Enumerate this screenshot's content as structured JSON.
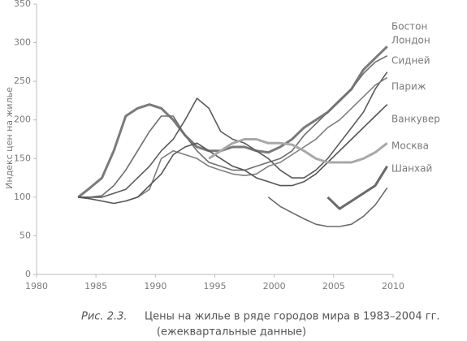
{
  "chart_data": {
    "type": "line",
    "y_label": "Индекс цен на жилье",
    "caption_label": "Рис. 2.3.",
    "caption": "Цены на жилье в ряде городов мира в 1983–2004 гг.",
    "caption_note": "(ежеквартальные данные)",
    "xlim": [
      1980,
      2010
    ],
    "xticks": [
      1980,
      1985,
      1990,
      1995,
      2000,
      2005,
      2010
    ],
    "ylim": [
      0,
      350
    ],
    "yticks": [
      0,
      50,
      100,
      150,
      200,
      250,
      300,
      350
    ],
    "x": [
      1983.5,
      1984.5,
      1985.5,
      1986.5,
      1987.5,
      1988.5,
      1989.5,
      1990.5,
      1991.5,
      1992.5,
      1993.5,
      1994.5,
      1995.5,
      1996.5,
      1997.5,
      1998.5,
      1999.5,
      2000.5,
      2001.5,
      2002.5,
      2003.5,
      2004.5,
      2005.5,
      2006.5,
      2007.5,
      2008.5,
      2009.5
    ],
    "series": [
      {
        "name": "Бостон",
        "color": "#7a7a7a",
        "values": [
          100,
          112,
          125,
          160,
          205,
          215,
          220,
          215,
          200,
          180,
          165,
          160,
          160,
          165,
          165,
          160,
          158,
          165,
          175,
          190,
          200,
          210,
          225,
          240,
          265,
          280,
          295
        ]
      },
      {
        "name": "Лондон",
        "color": "#6e6e6e",
        "values": [
          100,
          100,
          102,
          115,
          135,
          160,
          185,
          205,
          205,
          180,
          160,
          145,
          140,
          135,
          135,
          140,
          145,
          150,
          160,
          180,
          195,
          210,
          225,
          240,
          260,
          275,
          283
        ]
      },
      {
        "name": "Сидней",
        "color": "#5a5a5a",
        "values": [
          100,
          100,
          100,
          105,
          110,
          125,
          140,
          160,
          175,
          200,
          228,
          215,
          185,
          175,
          170,
          160,
          150,
          135,
          125,
          125,
          135,
          150,
          170,
          190,
          210,
          240,
          262
        ]
      },
      {
        "name": "Париж",
        "color": "#7f7f7f",
        "values": [
          null,
          null,
          null,
          null,
          95,
          100,
          110,
          150,
          160,
          155,
          150,
          140,
          135,
          130,
          128,
          130,
          140,
          145,
          155,
          165,
          175,
          190,
          200,
          215,
          230,
          245,
          255
        ]
      },
      {
        "name": "Ванкувер",
        "color": "#555555",
        "values": [
          100,
          98,
          95,
          92,
          95,
          100,
          115,
          130,
          155,
          165,
          170,
          160,
          150,
          140,
          135,
          125,
          120,
          115,
          115,
          120,
          130,
          145,
          160,
          175,
          190,
          205,
          220
        ]
      },
      {
        "name": "Москва",
        "color": "#a8a8a8",
        "values": [
          null,
          null,
          null,
          null,
          null,
          null,
          null,
          null,
          null,
          null,
          null,
          150,
          160,
          170,
          175,
          175,
          170,
          170,
          168,
          160,
          150,
          145,
          145,
          145,
          150,
          158,
          170
        ]
      },
      {
        "name": "Шанхай",
        "color": "#6a6a6a",
        "values": [
          null,
          null,
          null,
          null,
          null,
          null,
          null,
          null,
          null,
          null,
          null,
          null,
          null,
          null,
          null,
          null,
          null,
          null,
          null,
          null,
          null,
          100,
          85,
          95,
          105,
          115,
          140
        ]
      },
      {
        "color": "#6a6a6a",
        "values": [
          null,
          null,
          null,
          null,
          null,
          null,
          null,
          null,
          null,
          null,
          null,
          null,
          null,
          null,
          null,
          null,
          100,
          88,
          80,
          72,
          65,
          62,
          62,
          65,
          75,
          90,
          112
        ]
      }
    ]
  }
}
